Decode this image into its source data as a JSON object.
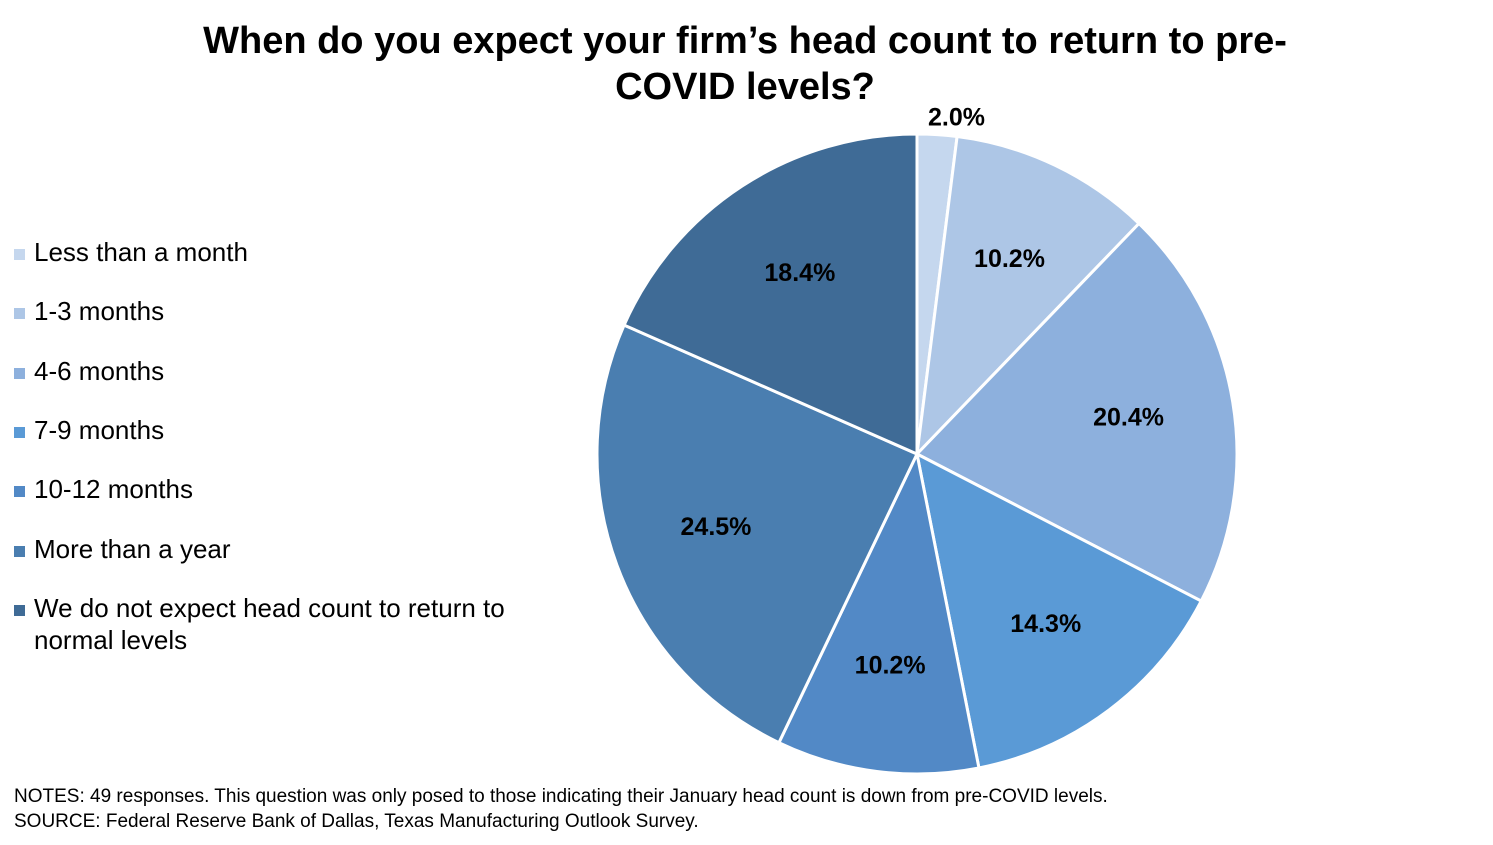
{
  "chart_data": {
    "type": "pie",
    "title": "When do you expect your firm’s head count to return to pre-COVID levels?",
    "categories": [
      "Less than a month",
      "1-3 months",
      "4-6 months",
      "7-9 months",
      "10-12 months",
      "More than a year",
      "We do not expect head count to return to normal levels"
    ],
    "values": [
      2.0,
      10.2,
      20.4,
      14.3,
      10.2,
      24.5,
      18.4
    ],
    "data_labels": [
      "2.0%",
      "10.2%",
      "20.4%",
      "14.3%",
      "10.2%",
      "24.5%",
      "18.4%"
    ],
    "colors": [
      "#C5D7EE",
      "#ADC6E6",
      "#8DB0DD",
      "#5A9AD6",
      "#5289C6",
      "#4A7EB0",
      "#3F6B96"
    ],
    "legend_position": "left"
  },
  "notes": {
    "line1": "NOTES: 49 responses. This question was only posed to those indicating their January head count is down from pre-COVID levels.",
    "line2": "SOURCE: Federal Reserve Bank of Dallas, Texas Manufacturing  Outlook Survey."
  }
}
